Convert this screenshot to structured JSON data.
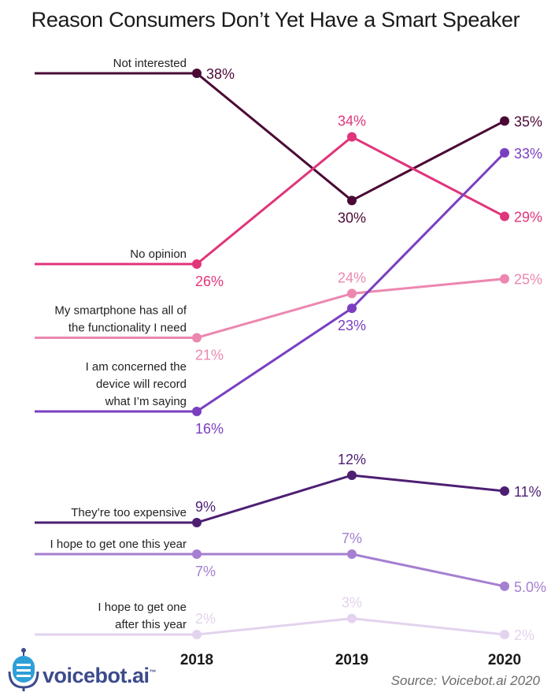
{
  "chart_data": {
    "type": "line",
    "title": "Reason Consumers Don’t Yet Have a Smart Speaker",
    "x": [
      "2018",
      "2019",
      "2020"
    ],
    "series": [
      {
        "name": "Not interested",
        "label_lines": [
          "Not interested"
        ],
        "values": [
          38,
          30,
          35
        ],
        "value_labels": [
          "38%",
          "30%",
          "35%"
        ],
        "color": "#4a0a35"
      },
      {
        "name": "No opinion",
        "label_lines": [
          "No opinion"
        ],
        "values": [
          26,
          34,
          29
        ],
        "value_labels": [
          "26%",
          "34%",
          "29%"
        ],
        "color": "#e0357a"
      },
      {
        "name": "My smartphone has all of the functionality I need",
        "label_lines": [
          "My smartphone has all of",
          "the functionality I need"
        ],
        "values": [
          21,
          24,
          25
        ],
        "value_labels": [
          "21%",
          "24%",
          "25%"
        ],
        "color": "#ec87b0"
      },
      {
        "name": "I am concerned the device will record what I’m saying",
        "label_lines": [
          "I am concerned the",
          "device will record",
          "what I’m saying"
        ],
        "values": [
          16,
          23,
          33
        ],
        "value_labels": [
          "16%",
          "23%",
          "33%"
        ],
        "color": "#7a3fc0"
      },
      {
        "name": "They’re too expensive",
        "label_lines": [
          "They’re too expensive"
        ],
        "values": [
          9,
          12,
          11
        ],
        "value_labels": [
          "9%",
          "12%",
          "11%"
        ],
        "color": "#4d1f73"
      },
      {
        "name": "I hope to get one this year",
        "label_lines": [
          "I hope to get one this year"
        ],
        "values": [
          7,
          7,
          5.0
        ],
        "value_labels": [
          "7%",
          "7%",
          "5.0%"
        ],
        "color": "#a57fd0"
      },
      {
        "name": "I hope to get one after this year",
        "label_lines": [
          "I hope to get one",
          "after this year"
        ],
        "values": [
          2,
          3,
          2
        ],
        "value_labels": [
          "2%",
          "3%",
          "2%"
        ],
        "color": "#e3d3ee"
      }
    ],
    "source": "Source: Voicebot.ai 2020",
    "grid": false,
    "legend": "inline-left"
  },
  "brand": {
    "name": "voicebot.ai",
    "tm": "™"
  }
}
